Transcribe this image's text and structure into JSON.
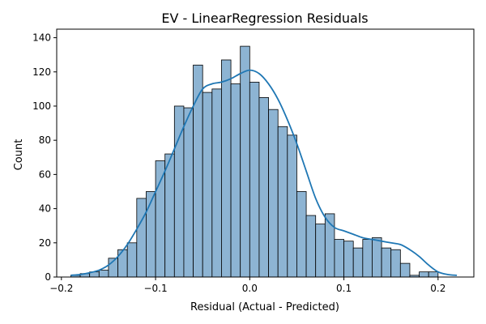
{
  "chart_data": {
    "type": "histogram",
    "title": "EV - LinearRegression Residuals",
    "xlabel": "Residual (Actual - Predicted)",
    "ylabel": "Count",
    "xlim": [
      -0.205,
      0.238
    ],
    "ylim": [
      0,
      145
    ],
    "xticks": [
      -0.2,
      -0.1,
      0.0,
      0.1,
      0.2
    ],
    "xtick_labels": [
      "−0.2",
      "−0.1",
      "0.0",
      "0.1",
      "0.2"
    ],
    "yticks": [
      0,
      20,
      40,
      60,
      80,
      100,
      120,
      140
    ],
    "ytick_labels": [
      "0",
      "20",
      "40",
      "60",
      "80",
      "100",
      "120",
      "140"
    ],
    "bin_start": -0.2,
    "bin_width": 0.01,
    "counts": [
      0,
      1,
      2,
      3,
      4,
      11,
      16,
      20,
      46,
      50,
      68,
      72,
      100,
      99,
      124,
      108,
      110,
      127,
      113,
      135,
      114,
      105,
      98,
      88,
      83,
      50,
      36,
      31,
      37,
      22,
      21,
      17,
      22,
      23,
      17,
      16,
      8,
      1,
      3,
      3
    ],
    "kde": {
      "x": [
        -0.19,
        -0.18,
        -0.17,
        -0.16,
        -0.15,
        -0.14,
        -0.13,
        -0.12,
        -0.11,
        -0.1,
        -0.09,
        -0.08,
        -0.07,
        -0.06,
        -0.05,
        -0.04,
        -0.03,
        -0.02,
        -0.01,
        0.0,
        0.01,
        0.02,
        0.03,
        0.04,
        0.05,
        0.06,
        0.07,
        0.08,
        0.09,
        0.1,
        0.11,
        0.12,
        0.13,
        0.14,
        0.15,
        0.16,
        0.17,
        0.18,
        0.19,
        0.2,
        0.21,
        0.22
      ],
      "y": [
        1,
        1.5,
        2.5,
        4,
        7,
        12,
        19,
        28,
        38,
        50,
        62,
        75,
        88,
        100,
        110,
        113,
        114,
        116,
        119,
        121,
        119,
        113,
        104,
        92,
        78,
        62,
        46,
        35,
        29,
        27,
        25,
        23,
        22,
        21,
        20,
        19,
        16,
        12,
        7,
        3,
        1.5,
        1
      ]
    },
    "bar_color": "#8db4d3",
    "bar_edge_color": "#000000",
    "line_color": "#1f77b4",
    "grid": false,
    "legend": null
  }
}
